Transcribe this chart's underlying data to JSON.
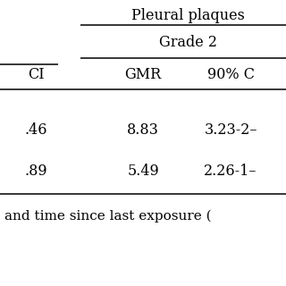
{
  "title": "Pleural plaques",
  "subtitle": "Grade 2",
  "col_header_left": "CI",
  "col_header_mid": "GMR",
  "col_header_right": "90% C",
  "row1_left": ".46",
  "row1_mid": "8.83",
  "row1_right": "3.23-2–",
  "row2_left": ".89",
  "row2_mid": "5.49",
  "row2_right": "2.26-1–",
  "footnote": "and time since last exposure (",
  "bg_color": "#ffffff",
  "text_color": "#000000",
  "font_size": 11.5,
  "line_color": "#000000",
  "line_lw": 1.1
}
